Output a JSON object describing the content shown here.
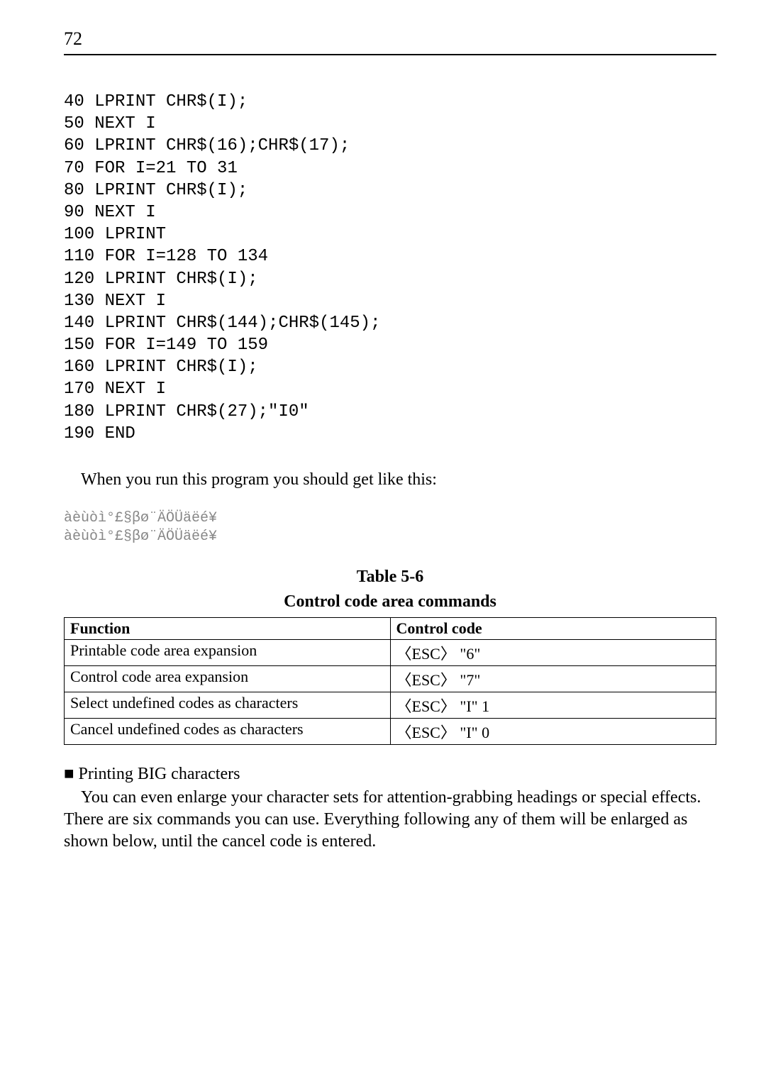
{
  "pageNumber": "72",
  "code": "40 LPRINT CHR$(I);\n50 NEXT I\n60 LPRINT CHR$(16);CHR$(17);\n70 FOR I=21 TO 31\n80 LPRINT CHR$(I);\n90 NEXT I\n100 LPRINT\n110 FOR I=128 TO 134\n120 LPRINT CHR$(I);\n130 NEXT I\n140 LPRINT CHR$(144);CHR$(145);\n150 FOR I=149 TO 159\n160 LPRINT CHR$(I);\n170 NEXT I\n180 LPRINT CHR$(27);\"I0\"\n190 END",
  "introText": "When you run this program you should get like this:",
  "specialOutput": "àèùòì°£§βø¨ÄÖÜäëé¥\nàèùòì°£§βø¨ÄÖÜäëé¥",
  "tableCaptionLine1": "Table 5-6",
  "tableCaptionLine2": "Control code area commands",
  "table": {
    "headers": [
      "Function",
      "Control code"
    ],
    "rows": [
      [
        "Printable code area expansion",
        "〈ESC〉 \"6\""
      ],
      [
        "Control code area expansion",
        "〈ESC〉 \"7\""
      ],
      [
        "Select undefined codes as characters",
        "〈ESC〉 \"I\" 1"
      ],
      [
        "Cancel undefined codes as characters",
        "〈ESC〉 \"I\" 0"
      ]
    ]
  },
  "sectionHeading": "Printing BIG characters",
  "bodyParagraph": "You can even enlarge your character sets for attention-grabbing headings or special effects. There are six commands you can use. Everything following any of them will be enlarged as shown below, until the cancel code is entered."
}
